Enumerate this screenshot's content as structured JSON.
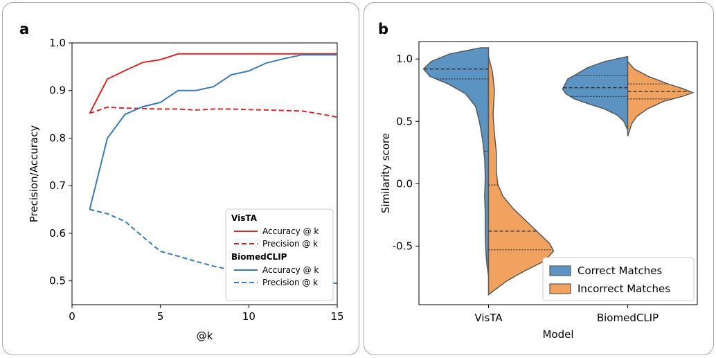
{
  "chart_data": [
    {
      "panel": "a",
      "type": "line",
      "xlabel": "@k",
      "ylabel": "Precision/Accuracy",
      "xlim": [
        0,
        15
      ],
      "ylim": [
        0.45,
        1.0
      ],
      "xticks": [
        0,
        5,
        10,
        15
      ],
      "yticks": [
        0.5,
        0.6,
        0.7,
        0.8,
        0.9,
        1.0
      ],
      "grid": false,
      "legend_position": "lower-right",
      "legend_groups": [
        {
          "title": "VisTA",
          "entries": [
            {
              "label": "Accuracy @ k",
              "color": "#d62728",
              "style": "solid"
            },
            {
              "label": "Precision @ k",
              "color": "#d62728",
              "style": "dashed"
            }
          ]
        },
        {
          "title": "BiomedCLIP",
          "entries": [
            {
              "label": "Accuracy @ k",
              "color": "#3b7ab5",
              "style": "solid"
            },
            {
              "label": "Precision @ k",
              "color": "#3b7ab5",
              "style": "dashed"
            }
          ]
        }
      ],
      "x": [
        1,
        2,
        3,
        4,
        5,
        6,
        7,
        8,
        9,
        10,
        11,
        12,
        13,
        14,
        15
      ],
      "series": [
        {
          "group": "VisTA",
          "metric": "Accuracy @ k",
          "color": "#d62728",
          "style": "solid",
          "values": [
            0.852,
            0.924,
            0.942,
            0.959,
            0.965,
            0.977,
            0.977,
            0.977,
            0.977,
            0.977,
            0.977,
            0.977,
            0.977,
            0.977,
            0.977
          ]
        },
        {
          "group": "VisTA",
          "metric": "Precision @ k",
          "color": "#d62728",
          "style": "dashed",
          "values": [
            0.852,
            0.865,
            0.863,
            0.862,
            0.861,
            0.861,
            0.859,
            0.861,
            0.861,
            0.86,
            0.859,
            0.858,
            0.857,
            0.851,
            0.844
          ]
        },
        {
          "group": "BiomedCLIP",
          "metric": "Accuracy @ k",
          "color": "#3b7ab5",
          "style": "solid",
          "values": [
            0.65,
            0.8,
            0.85,
            0.866,
            0.875,
            0.9,
            0.9,
            0.908,
            0.933,
            0.941,
            0.958,
            0.967,
            0.975,
            0.975,
            0.975
          ]
        },
        {
          "group": "BiomedCLIP",
          "metric": "Precision @ k",
          "color": "#3b7ab5",
          "style": "dashed",
          "values": [
            0.65,
            0.641,
            0.625,
            0.593,
            0.562,
            0.552,
            0.541,
            0.531,
            0.523,
            0.514,
            0.509,
            0.504,
            0.499,
            0.497,
            0.495
          ]
        }
      ]
    },
    {
      "panel": "b",
      "type": "violin",
      "xlabel": "Model",
      "ylabel": "Similarity score",
      "categories": [
        "VisTA",
        "BiomedCLIP"
      ],
      "ylim": [
        -0.97,
        1.14
      ],
      "yticks": [
        -0.5,
        0.0,
        0.5,
        1.0
      ],
      "grid": false,
      "legend_position": "lower-right",
      "series": [
        {
          "name": "Correct Matches",
          "side": "left",
          "color": "#5b93c2",
          "violins": [
            {
              "category": "VisTA",
              "profile": [
                [
                  1.09,
                  0.12
                ],
                [
                  1.04,
                  0.6
                ],
                [
                  0.98,
                  0.88
                ],
                [
                  0.92,
                  1.0
                ],
                [
                  0.86,
                  0.9
                ],
                [
                  0.8,
                  0.62
                ],
                [
                  0.72,
                  0.35
                ],
                [
                  0.62,
                  0.2
                ],
                [
                  0.5,
                  0.14
                ],
                [
                  0.35,
                  0.09
                ],
                [
                  0.2,
                  0.06
                ],
                [
                  0.05,
                  0.05
                ],
                [
                  -0.1,
                  0.06
                ],
                [
                  -0.25,
                  0.05
                ],
                [
                  -0.4,
                  0.05
                ],
                [
                  -0.55,
                  0.04
                ],
                [
                  -0.65,
                  0.025
                ],
                [
                  -0.74,
                  0.0
                ]
              ],
              "quartiles": [
                0.84,
                0.92,
                0.26
              ]
            },
            {
              "category": "BiomedCLIP",
              "profile": [
                [
                  1.02,
                  0.0
                ],
                [
                  0.98,
                  0.35
                ],
                [
                  0.93,
                  0.62
                ],
                [
                  0.88,
                  0.78
                ],
                [
                  0.84,
                  0.92
                ],
                [
                  0.8,
                  0.96
                ],
                [
                  0.76,
                  1.0
                ],
                [
                  0.72,
                  0.95
                ],
                [
                  0.68,
                  0.82
                ],
                [
                  0.64,
                  0.6
                ],
                [
                  0.6,
                  0.36
                ],
                [
                  0.55,
                  0.16
                ],
                [
                  0.5,
                  0.06
                ],
                [
                  0.43,
                  0.0
                ]
              ],
              "quartiles": [
                0.7,
                0.77,
                0.87
              ]
            }
          ]
        },
        {
          "name": "Incorrect Matches",
          "side": "right",
          "color": "#f0a25e",
          "violins": [
            {
              "category": "VisTA",
              "profile": [
                [
                  1.02,
                  0.0
                ],
                [
                  0.9,
                  0.06
                ],
                [
                  0.75,
                  0.09
                ],
                [
                  0.55,
                  0.07
                ],
                [
                  0.4,
                  0.09
                ],
                [
                  0.25,
                  0.12
                ],
                [
                  0.1,
                  0.12
                ],
                [
                  0.0,
                  0.14
                ],
                [
                  -0.1,
                  0.22
                ],
                [
                  -0.2,
                  0.38
                ],
                [
                  -0.3,
                  0.58
                ],
                [
                  -0.4,
                  0.78
                ],
                [
                  -0.48,
                  0.94
                ],
                [
                  -0.54,
                  1.0
                ],
                [
                  -0.62,
                  0.86
                ],
                [
                  -0.7,
                  0.55
                ],
                [
                  -0.78,
                  0.28
                ],
                [
                  -0.85,
                  0.1
                ],
                [
                  -0.89,
                  0.0
                ]
              ],
              "quartiles": [
                -0.53,
                -0.38,
                -0.01
              ]
            },
            {
              "category": "BiomedCLIP",
              "profile": [
                [
                  0.98,
                  0.0
                ],
                [
                  0.92,
                  0.1
                ],
                [
                  0.86,
                  0.32
                ],
                [
                  0.8,
                  0.62
                ],
                [
                  0.76,
                  0.86
                ],
                [
                  0.73,
                  1.0
                ],
                [
                  0.7,
                  0.84
                ],
                [
                  0.66,
                  0.55
                ],
                [
                  0.6,
                  0.3
                ],
                [
                  0.54,
                  0.14
                ],
                [
                  0.48,
                  0.06
                ],
                [
                  0.38,
                  0.0
                ]
              ],
              "quartiles": [
                0.68,
                0.74,
                0.8
              ]
            }
          ]
        }
      ]
    }
  ],
  "panels": {
    "a": {
      "letter": "a"
    },
    "b": {
      "letter": "b"
    }
  }
}
